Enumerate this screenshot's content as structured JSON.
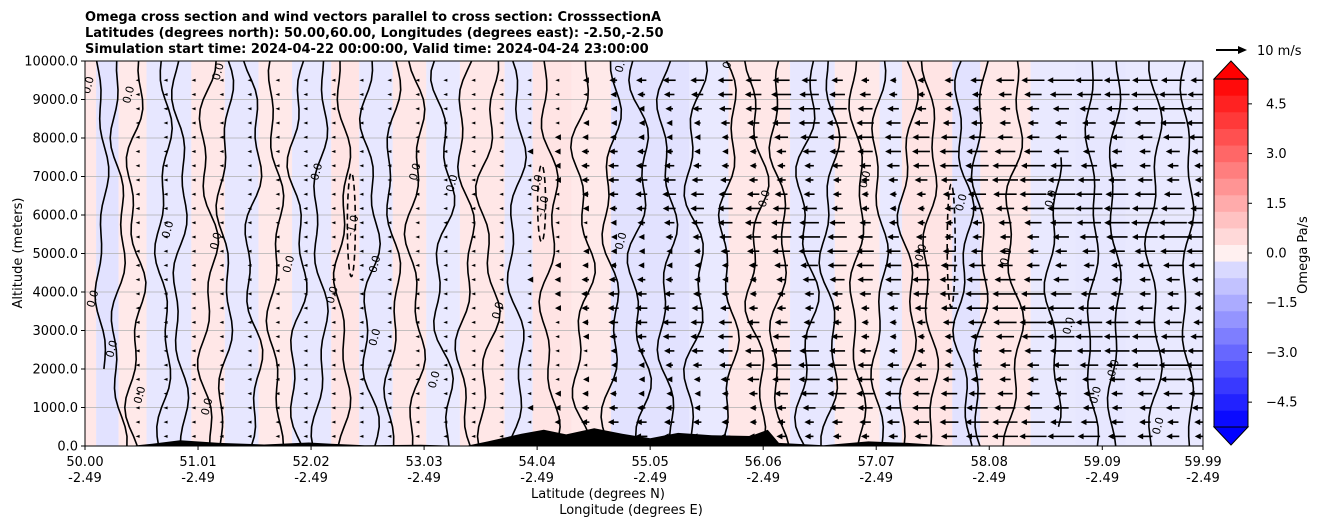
{
  "chart_data": {
    "type": "contour",
    "title_lines": [
      "Omega cross section and wind vectors parallel to cross section: CrosssectionA",
      "Latitudes (degrees north): 50.00,60.00, Longitudes (degrees east): -2.50,-2.50",
      "Simulation start time: 2024-04-22 00:00:00, Valid time: 2024-04-24 23:00:00"
    ],
    "xlabel_lat": "Latitude (degrees N)",
    "xlabel_lon": "Longitude (degrees E)",
    "ylabel": "Altitude (meters)",
    "xlim": [
      50.0,
      59.99
    ],
    "ylim": [
      0,
      10000
    ],
    "x_ticks": [
      {
        "lat": "50.00",
        "lon": "-2.49",
        "value": 50.0
      },
      {
        "lat": "51.01",
        "lon": "-2.49",
        "value": 51.01
      },
      {
        "lat": "52.02",
        "lon": "-2.49",
        "value": 52.02
      },
      {
        "lat": "53.03",
        "lon": "-2.49",
        "value": 53.03
      },
      {
        "lat": "54.04",
        "lon": "-2.49",
        "value": 54.04
      },
      {
        "lat": "55.05",
        "lon": "-2.49",
        "value": 55.05
      },
      {
        "lat": "56.06",
        "lon": "-2.49",
        "value": 56.06
      },
      {
        "lat": "57.07",
        "lon": "-2.49",
        "value": 57.07
      },
      {
        "lat": "58.08",
        "lon": "-2.49",
        "value": 58.08
      },
      {
        "lat": "59.09",
        "lon": "-2.49",
        "value": 59.09
      },
      {
        "lat": "59.99",
        "lon": "-2.49",
        "value": 59.99
      }
    ],
    "y_ticks": [
      {
        "label": "0.0",
        "value": 0
      },
      {
        "label": "1000.0",
        "value": 1000
      },
      {
        "label": "2000.0",
        "value": 2000
      },
      {
        "label": "3000.0",
        "value": 3000
      },
      {
        "label": "4000.0",
        "value": 4000
      },
      {
        "label": "5000.0",
        "value": 5000
      },
      {
        "label": "6000.0",
        "value": 6000
      },
      {
        "label": "7000.0",
        "value": 7000
      },
      {
        "label": "8000.0",
        "value": 8000
      },
      {
        "label": "9000.0",
        "value": 9000
      },
      {
        "label": "10000.0",
        "value": 10000
      }
    ],
    "grid": "horizontal",
    "colorbar": {
      "label": "Omega Pa/s",
      "range": [
        -5.25,
        5.25
      ],
      "step": 0.5,
      "extend": "both",
      "ticks": [
        {
          "label": "4.5",
          "value": 4.5
        },
        {
          "label": "3.0",
          "value": 3.0
        },
        {
          "label": "1.5",
          "value": 1.5
        },
        {
          "label": "0.0",
          "value": 0.0
        },
        {
          "label": "−1.5",
          "value": -1.5
        },
        {
          "label": "−3.0",
          "value": -3.0
        },
        {
          "label": "−4.5",
          "value": -4.5
        }
      ],
      "positive_color": "#ff0000",
      "negative_color": "#0000ff"
    },
    "quiver_key": {
      "label": "10 m/s",
      "speed": 10
    },
    "wind_columns": [
      {
        "lat": 50.47,
        "speed": 0.3
      },
      {
        "lat": 50.72,
        "speed": 0.5
      },
      {
        "lat": 50.97,
        "speed": 1.0
      },
      {
        "lat": 51.22,
        "speed": 0.4
      },
      {
        "lat": 51.47,
        "speed": 0.3
      },
      {
        "lat": 51.72,
        "speed": 0.4
      },
      {
        "lat": 51.97,
        "speed": 0.6
      },
      {
        "lat": 52.22,
        "speed": 0.5
      },
      {
        "lat": 52.47,
        "speed": 0.3
      },
      {
        "lat": 52.72,
        "speed": 0.2
      },
      {
        "lat": 52.97,
        "speed": 0.4
      },
      {
        "lat": 53.22,
        "speed": 0.8
      },
      {
        "lat": 53.47,
        "speed": 1.2
      },
      {
        "lat": 53.72,
        "speed": 1.0
      },
      {
        "lat": 53.97,
        "speed": 1.5
      },
      {
        "lat": 54.22,
        "speed": 2.0
      },
      {
        "lat": 54.47,
        "speed": 3.0
      },
      {
        "lat": 54.72,
        "speed": 4.0
      },
      {
        "lat": 54.97,
        "speed": 4.5
      },
      {
        "lat": 55.22,
        "speed": 5.0
      },
      {
        "lat": 55.47,
        "speed": 5.0
      },
      {
        "lat": 55.72,
        "speed": 5.5
      },
      {
        "lat": 55.97,
        "speed": 6.0
      },
      {
        "lat": 56.22,
        "speed": 7.5
      },
      {
        "lat": 56.47,
        "speed": 8.0
      },
      {
        "lat": 56.72,
        "speed": 7.5
      },
      {
        "lat": 56.97,
        "speed": 6.5
      },
      {
        "lat": 57.22,
        "speed": 6.0
      },
      {
        "lat": 57.47,
        "speed": 6.5
      },
      {
        "lat": 57.72,
        "speed": 7.0
      },
      {
        "lat": 57.97,
        "speed": 8.5
      },
      {
        "lat": 58.22,
        "speed": 9.5
      },
      {
        "lat": 58.47,
        "speed": 10.0
      },
      {
        "lat": 58.72,
        "speed": 10.5
      },
      {
        "lat": 58.97,
        "speed": 10.0
      },
      {
        "lat": 59.22,
        "speed": 9.5
      },
      {
        "lat": 59.47,
        "speed": 10.0
      },
      {
        "lat": 59.72,
        "speed": 10.5
      },
      {
        "lat": 59.97,
        "speed": 11.0
      }
    ],
    "wind_direction": "southward (towards lower latitude)",
    "shading_bands": [
      {
        "from": 50.0,
        "to": 50.1,
        "omega": 0.2
      },
      {
        "from": 50.1,
        "to": 50.3,
        "omega": -0.3
      },
      {
        "from": 50.3,
        "to": 50.55,
        "omega": 0.15
      },
      {
        "from": 50.55,
        "to": 50.95,
        "omega": -0.2
      },
      {
        "from": 50.95,
        "to": 51.25,
        "omega": 0.2
      },
      {
        "from": 51.25,
        "to": 51.55,
        "omega": -0.2
      },
      {
        "from": 51.55,
        "to": 51.85,
        "omega": 0.15
      },
      {
        "from": 51.85,
        "to": 52.2,
        "omega": -0.2
      },
      {
        "from": 52.2,
        "to": 52.45,
        "omega": 0.25
      },
      {
        "from": 52.45,
        "to": 52.75,
        "omega": -0.2
      },
      {
        "from": 52.75,
        "to": 53.05,
        "omega": 0.2
      },
      {
        "from": 53.05,
        "to": 53.35,
        "omega": -0.15
      },
      {
        "from": 53.35,
        "to": 53.75,
        "omega": 0.2
      },
      {
        "from": 53.75,
        "to": 54.0,
        "omega": -0.2
      },
      {
        "from": 54.0,
        "to": 54.35,
        "omega": 0.25
      },
      {
        "from": 54.35,
        "to": 54.7,
        "omega": 0.15
      },
      {
        "from": 54.7,
        "to": 55.4,
        "omega": -0.3
      },
      {
        "from": 55.4,
        "to": 55.75,
        "omega": -0.15
      },
      {
        "from": 55.75,
        "to": 56.3,
        "omega": 0.2
      },
      {
        "from": 56.3,
        "to": 56.7,
        "omega": -0.2
      },
      {
        "from": 56.7,
        "to": 57.1,
        "omega": 0.15
      },
      {
        "from": 57.1,
        "to": 57.3,
        "omega": -0.15
      },
      {
        "from": 57.3,
        "to": 57.75,
        "omega": 0.25
      },
      {
        "from": 57.75,
        "to": 58.0,
        "omega": -0.3
      },
      {
        "from": 58.0,
        "to": 58.45,
        "omega": 0.2
      },
      {
        "from": 58.45,
        "to": 58.85,
        "omega": -0.15
      },
      {
        "from": 58.85,
        "to": 59.3,
        "omega": -0.2
      },
      {
        "from": 59.3,
        "to": 59.99,
        "omega": -0.15
      }
    ],
    "contour_lines": [
      {
        "lat": 50.15,
        "amp": 0.04,
        "y0": 2000,
        "y1": 10000,
        "level": 0.0
      },
      {
        "lat": 50.3,
        "amp": 0.05,
        "y0": 0,
        "y1": 10000,
        "level": 0.0
      },
      {
        "lat": 50.45,
        "amp": 0.06,
        "y0": 0,
        "y1": 10000,
        "level": 0.0
      },
      {
        "lat": 50.7,
        "amp": 0.05,
        "y0": 0,
        "y1": 10000,
        "level": 0.0
      },
      {
        "lat": 50.85,
        "amp": 0.05,
        "y0": 0,
        "y1": 10000,
        "level": 0.0
      },
      {
        "lat": 51.1,
        "amp": 0.06,
        "y0": 0,
        "y1": 10000,
        "level": 0.0
      },
      {
        "lat": 51.25,
        "amp": 0.05,
        "y0": 0,
        "y1": 10000,
        "level": 0.0
      },
      {
        "lat": 51.5,
        "amp": 0.06,
        "y0": 0,
        "y1": 10000,
        "level": 0.0
      },
      {
        "lat": 51.7,
        "amp": 0.05,
        "y0": 0,
        "y1": 10000,
        "level": 0.0
      },
      {
        "lat": 51.9,
        "amp": 0.06,
        "y0": 0,
        "y1": 10000,
        "level": 0.0
      },
      {
        "lat": 52.1,
        "amp": 0.05,
        "y0": 0,
        "y1": 10000,
        "level": 0.0
      },
      {
        "lat": 52.3,
        "amp": 0.05,
        "y0": 0,
        "y1": 10000,
        "level": 0.0
      },
      {
        "lat": 52.55,
        "amp": 0.06,
        "y0": 0,
        "y1": 10000,
        "level": 0.0
      },
      {
        "lat": 52.75,
        "amp": 0.05,
        "y0": 0,
        "y1": 10000,
        "level": 0.0
      },
      {
        "lat": 52.95,
        "amp": 0.06,
        "y0": 0,
        "y1": 10000,
        "level": 0.0
      },
      {
        "lat": 53.2,
        "amp": 0.07,
        "y0": 0,
        "y1": 10000,
        "level": 0.0
      },
      {
        "lat": 53.4,
        "amp": 0.06,
        "y0": 0,
        "y1": 10000,
        "level": 0.0
      },
      {
        "lat": 53.6,
        "amp": 0.07,
        "y0": 0,
        "y1": 10000,
        "level": 0.0
      },
      {
        "lat": 53.85,
        "amp": 0.06,
        "y0": 0,
        "y1": 10000,
        "level": 0.0
      },
      {
        "lat": 54.15,
        "amp": 0.06,
        "y0": 0,
        "y1": 10000,
        "level": 0.0
      },
      {
        "lat": 54.45,
        "amp": 0.07,
        "y0": 0,
        "y1": 10000,
        "level": 0.0
      },
      {
        "lat": 54.7,
        "amp": 0.06,
        "y0": 0,
        "y1": 10000,
        "level": 0.0
      },
      {
        "lat": 54.95,
        "amp": 0.07,
        "y0": 0,
        "y1": 10000,
        "level": 0.0
      },
      {
        "lat": 55.2,
        "amp": 0.06,
        "y0": 0,
        "y1": 10000,
        "level": 0.0
      },
      {
        "lat": 55.45,
        "amp": 0.07,
        "y0": 0,
        "y1": 10000,
        "level": 0.0
      },
      {
        "lat": 55.75,
        "amp": 0.06,
        "y0": 0,
        "y1": 10000,
        "level": 0.0
      },
      {
        "lat": 56.0,
        "amp": 0.07,
        "y0": 0,
        "y1": 10000,
        "level": 0.0
      },
      {
        "lat": 56.2,
        "amp": 0.06,
        "y0": 0,
        "y1": 10000,
        "level": 0.0
      },
      {
        "lat": 56.45,
        "amp": 0.07,
        "y0": 0,
        "y1": 10000,
        "level": 0.0
      },
      {
        "lat": 56.65,
        "amp": 0.06,
        "y0": 0,
        "y1": 10000,
        "level": 0.0
      },
      {
        "lat": 56.9,
        "amp": 0.05,
        "y0": 0,
        "y1": 10000,
        "level": 0.0
      },
      {
        "lat": 57.1,
        "amp": 0.05,
        "y0": 0,
        "y1": 10000,
        "level": 0.0
      },
      {
        "lat": 57.35,
        "amp": 0.06,
        "y0": 0,
        "y1": 10000,
        "level": 0.0
      },
      {
        "lat": 57.55,
        "amp": 0.05,
        "y0": 0,
        "y1": 10000,
        "level": 0.0
      },
      {
        "lat": 57.85,
        "amp": 0.06,
        "y0": 0,
        "y1": 10000,
        "level": 0.0
      },
      {
        "lat": 58.0,
        "amp": 0.05,
        "y0": 0,
        "y1": 10000,
        "level": 0.0
      },
      {
        "lat": 58.3,
        "amp": 0.06,
        "y0": 0,
        "y1": 10000,
        "level": 0.0
      },
      {
        "lat": 58.65,
        "amp": 0.05,
        "y0": 500,
        "y1": 7500,
        "level": 0.0
      },
      {
        "lat": 59.0,
        "amp": 0.04,
        "y0": 0,
        "y1": 10000,
        "level": 0.0
      },
      {
        "lat": 59.2,
        "amp": 0.04,
        "y0": 0,
        "y1": 10000,
        "level": 0.0
      },
      {
        "lat": 59.55,
        "amp": 0.05,
        "y0": 0,
        "y1": 10000,
        "level": 0.0
      },
      {
        "lat": 59.85,
        "amp": 0.04,
        "y0": 0,
        "y1": 10000,
        "level": 0.0
      }
    ],
    "dashed_contours": [
      {
        "lat": 52.38,
        "y0": 4400,
        "y1": 7100,
        "level": -1.0
      },
      {
        "lat": 54.08,
        "y0": 5300,
        "y1": 7300,
        "level": -1.0
      },
      {
        "lat": 57.74,
        "y0": 3600,
        "y1": 6800,
        "level": -1.0
      }
    ],
    "contour_labels": [
      {
        "text": "0.0",
        "lat": 50.06,
        "alt": 9350
      },
      {
        "text": "0.0",
        "lat": 50.1,
        "alt": 3800
      },
      {
        "text": "0.0",
        "lat": 50.27,
        "alt": 2500
      },
      {
        "text": "0.0",
        "lat": 50.42,
        "alt": 9100
      },
      {
        "text": "0.0",
        "lat": 50.52,
        "alt": 1300
      },
      {
        "text": "0.0",
        "lat": 50.77,
        "alt": 5600
      },
      {
        "text": "0.0",
        "lat": 51.12,
        "alt": 1000
      },
      {
        "text": "0.0",
        "lat": 51.2,
        "alt": 5300
      },
      {
        "text": "0.0",
        "lat": 51.22,
        "alt": 9700
      },
      {
        "text": "0.0",
        "lat": 51.85,
        "alt": 4700
      },
      {
        "text": "0.0",
        "lat": 52.1,
        "alt": 7100
      },
      {
        "text": "0.0",
        "lat": 52.24,
        "alt": 3900
      },
      {
        "text": "-1.0",
        "lat": 52.42,
        "alt": 5700
      },
      {
        "text": "0.0",
        "lat": 52.62,
        "alt": 4700
      },
      {
        "text": "0.0",
        "lat": 52.62,
        "alt": 2800
      },
      {
        "text": "0.0",
        "lat": 52.98,
        "alt": 7100
      },
      {
        "text": "0.0",
        "lat": 53.31,
        "alt": 6800
      },
      {
        "text": "0.0",
        "lat": 53.15,
        "alt": 1700
      },
      {
        "text": "0.0",
        "lat": 53.72,
        "alt": 3500
      },
      {
        "text": "0.0",
        "lat": 54.07,
        "alt": 6800
      },
      {
        "text": "-1.0",
        "lat": 54.12,
        "alt": 6200
      },
      {
        "text": "0.0",
        "lat": 54.82,
        "alt": 9900
      },
      {
        "text": "0.0",
        "lat": 54.82,
        "alt": 5300
      },
      {
        "text": "0.0",
        "lat": 55.78,
        "alt": 10000
      },
      {
        "text": "0.0",
        "lat": 56.1,
        "alt": 6400
      },
      {
        "text": "0.0",
        "lat": 57.0,
        "alt": 6900
      },
      {
        "text": "0.0",
        "lat": 57.5,
        "alt": 5000
      },
      {
        "text": "0.0",
        "lat": 57.86,
        "alt": 6300
      },
      {
        "text": "0.0",
        "lat": 58.26,
        "alt": 4900
      },
      {
        "text": "0.0",
        "lat": 58.66,
        "alt": 6400
      },
      {
        "text": "0.0",
        "lat": 58.82,
        "alt": 3100
      },
      {
        "text": "0.0",
        "lat": 59.06,
        "alt": 1300
      },
      {
        "text": "0.0",
        "lat": 59.22,
        "alt": 2000
      },
      {
        "text": "0.0",
        "lat": 59.62,
        "alt": 500
      }
    ],
    "terrain": [
      {
        "lat": 50.4,
        "alt": 0
      },
      {
        "lat": 50.6,
        "alt": 60
      },
      {
        "lat": 50.85,
        "alt": 150
      },
      {
        "lat": 51.2,
        "alt": 80
      },
      {
        "lat": 51.6,
        "alt": 40
      },
      {
        "lat": 52.0,
        "alt": 90
      },
      {
        "lat": 52.2,
        "alt": 60
      },
      {
        "lat": 52.5,
        "alt": 20
      },
      {
        "lat": 53.0,
        "alt": 30
      },
      {
        "lat": 53.4,
        "alt": 0
      },
      {
        "lat": 53.6,
        "alt": 120
      },
      {
        "lat": 53.9,
        "alt": 320
      },
      {
        "lat": 54.1,
        "alt": 420
      },
      {
        "lat": 54.3,
        "alt": 300
      },
      {
        "lat": 54.55,
        "alt": 460
      },
      {
        "lat": 54.8,
        "alt": 320
      },
      {
        "lat": 55.05,
        "alt": 200
      },
      {
        "lat": 55.3,
        "alt": 340
      },
      {
        "lat": 55.6,
        "alt": 280
      },
      {
        "lat": 55.95,
        "alt": 260
      },
      {
        "lat": 56.1,
        "alt": 420
      },
      {
        "lat": 56.2,
        "alt": 80
      },
      {
        "lat": 56.6,
        "alt": 20
      },
      {
        "lat": 57.0,
        "alt": 120
      },
      {
        "lat": 57.35,
        "alt": 80
      },
      {
        "lat": 57.6,
        "alt": 30
      },
      {
        "lat": 57.75,
        "alt": 0
      }
    ]
  }
}
